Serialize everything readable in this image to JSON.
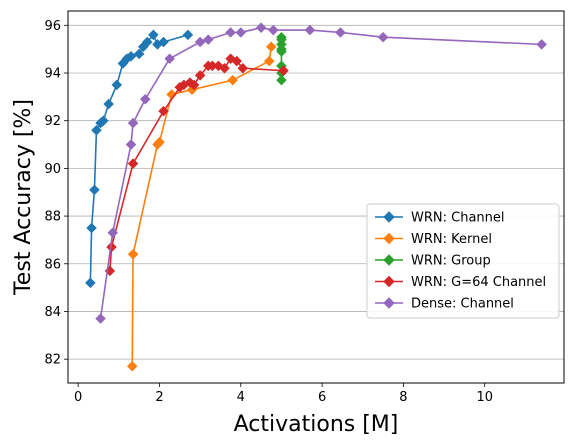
{
  "chart_data": {
    "type": "line",
    "xlabel": "Activations [M]",
    "ylabel": "Test Accuracy [%]",
    "xlim": [
      -0.25,
      11.95
    ],
    "ylim": [
      81.0,
      96.6
    ],
    "xticks": [
      0,
      2,
      4,
      6,
      8,
      10
    ],
    "yticks": [
      82,
      84,
      86,
      88,
      90,
      92,
      94,
      96
    ],
    "grid": "horizontal",
    "legend_position": "center-right",
    "marker": "diamond",
    "series": [
      {
        "name": "WRN: Channel",
        "color": "#1f77b4",
        "x": [
          0.3,
          0.33,
          0.4,
          0.45,
          0.55,
          0.62,
          0.75,
          0.95,
          1.1,
          1.2,
          1.3,
          1.5,
          1.6,
          1.7,
          1.85,
          1.95,
          2.1,
          2.7
        ],
        "y": [
          85.2,
          87.5,
          89.1,
          91.6,
          91.9,
          92.0,
          92.7,
          93.5,
          94.4,
          94.6,
          94.7,
          94.8,
          95.1,
          95.3,
          95.6,
          95.2,
          95.3,
          95.6
        ]
      },
      {
        "name": "WRN: Kernel",
        "color": "#ff7f0e",
        "x": [
          1.33,
          1.35,
          1.95,
          2.0,
          2.3,
          2.8,
          3.8,
          4.7,
          4.75
        ],
        "y": [
          81.7,
          86.4,
          91.0,
          91.1,
          93.1,
          93.3,
          93.7,
          94.5,
          95.1
        ]
      },
      {
        "name": "WRN: Group",
        "color": "#2ca02c",
        "x": [
          5.0,
          5.0,
          5.0,
          5.0,
          5.0,
          5.0,
          5.0,
          5.0
        ],
        "y": [
          93.7,
          94.0,
          94.3,
          94.9,
          95.0,
          95.2,
          95.4,
          95.5
        ]
      },
      {
        "name": "WRN: G=64 Channel",
        "color": "#d62728",
        "x": [
          0.78,
          0.82,
          1.35,
          2.1,
          2.5,
          2.6,
          2.75,
          2.85,
          3.0,
          3.2,
          3.3,
          3.45,
          3.6,
          3.75,
          3.9,
          4.05,
          5.05
        ],
        "y": [
          85.7,
          86.7,
          90.2,
          92.4,
          93.4,
          93.5,
          93.6,
          93.5,
          93.9,
          94.3,
          94.3,
          94.3,
          94.2,
          94.6,
          94.5,
          94.2,
          94.1
        ]
      },
      {
        "name": "Dense: Channel",
        "color": "#9467bd",
        "x": [
          0.55,
          0.85,
          1.3,
          1.35,
          1.65,
          2.25,
          3.0,
          3.2,
          3.75,
          4.0,
          4.5,
          4.8,
          5.7,
          6.45,
          7.5,
          11.4
        ],
        "y": [
          83.7,
          87.3,
          91.0,
          91.9,
          92.9,
          94.6,
          95.3,
          95.4,
          95.7,
          95.7,
          95.9,
          95.8,
          95.8,
          95.7,
          95.5,
          95.2
        ]
      }
    ]
  }
}
